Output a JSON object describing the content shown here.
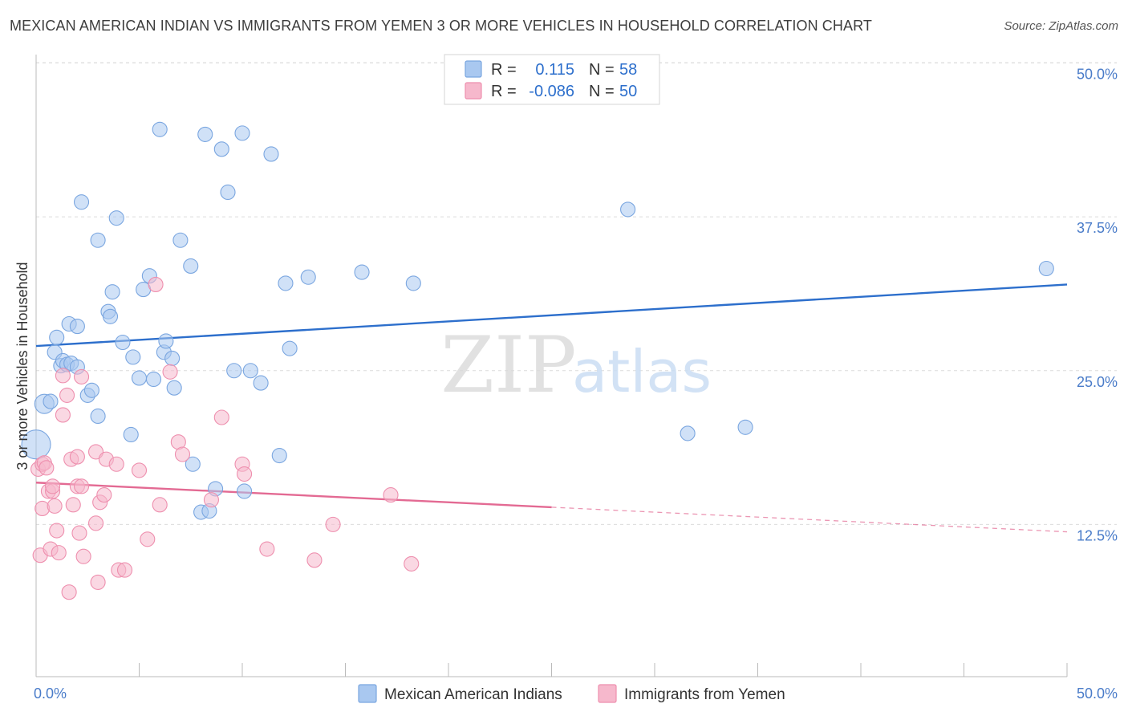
{
  "title": "MEXICAN AMERICAN INDIAN VS IMMIGRANTS FROM YEMEN 3 OR MORE VEHICLES IN HOUSEHOLD CORRELATION CHART",
  "source": "Source: ZipAtlas.com",
  "watermark": {
    "zip": "ZIP",
    "atlas": "atlas"
  },
  "legend": {
    "r_label": "R =",
    "n_label": "N =",
    "rows": [
      {
        "r": "0.115",
        "n": "58",
        "color": "#a9c8f0"
      },
      {
        "r": "-0.086",
        "n": "50",
        "color": "#f6b8cc"
      }
    ]
  },
  "bottom_legend": [
    {
      "label": "Mexican American Indians",
      "color": "#a9c8f0"
    },
    {
      "label": "Immigrants from Yemen",
      "color": "#f6b8cc"
    }
  ],
  "chart_data": {
    "type": "scatter",
    "title": "MEXICAN AMERICAN INDIAN VS IMMIGRANTS FROM YEMEN 3 OR MORE VEHICLES IN HOUSEHOLD CORRELATION CHART",
    "xlabel": "",
    "ylabel": "3 or more Vehicles in Household",
    "xlim": [
      0,
      50
    ],
    "ylim": [
      0,
      52
    ],
    "x_tick_labels": [
      "0.0%",
      "50.0%"
    ],
    "y_ticks": [
      12.5,
      25.0,
      37.5,
      50.0
    ],
    "y_tick_labels": [
      "12.5%",
      "25.0%",
      "37.5%",
      "50.0%"
    ],
    "grid": true,
    "series": [
      {
        "name": "Mexican American Indians",
        "color": "#a9c8f0",
        "stroke": "#7aa6e0",
        "trend": {
          "x0": 0,
          "y0": 27.0,
          "x1": 50,
          "y1": 32.0,
          "color": "#2d6fcc",
          "dashed_from": null
        },
        "points": [
          [
            0.0,
            19.0,
            18
          ],
          [
            0.4,
            22.3,
            12
          ],
          [
            0.7,
            22.5,
            9
          ],
          [
            0.9,
            26.5,
            9
          ],
          [
            1.0,
            27.7,
            9
          ],
          [
            1.2,
            25.4,
            9
          ],
          [
            1.3,
            25.8,
            9
          ],
          [
            1.5,
            25.5,
            9
          ],
          [
            1.6,
            28.8,
            9
          ],
          [
            1.7,
            25.6,
            9
          ],
          [
            2.0,
            25.3,
            9
          ],
          [
            2.0,
            28.6,
            9
          ],
          [
            2.2,
            38.7,
            9
          ],
          [
            2.5,
            23.0,
            9
          ],
          [
            2.7,
            23.4,
            9
          ],
          [
            3.0,
            21.3,
            9
          ],
          [
            3.0,
            35.6,
            9
          ],
          [
            3.5,
            29.8,
            9
          ],
          [
            3.6,
            29.4,
            9
          ],
          [
            3.7,
            31.4,
            9
          ],
          [
            3.9,
            37.4,
            9
          ],
          [
            4.2,
            27.3,
            9
          ],
          [
            4.6,
            19.8,
            9
          ],
          [
            4.7,
            26.1,
            9
          ],
          [
            5.0,
            24.4,
            9
          ],
          [
            5.2,
            31.6,
            9
          ],
          [
            5.5,
            32.7,
            9
          ],
          [
            5.7,
            24.3,
            9
          ],
          [
            6.0,
            44.6,
            9
          ],
          [
            6.2,
            26.5,
            9
          ],
          [
            6.3,
            27.4,
            9
          ],
          [
            6.6,
            26.0,
            9
          ],
          [
            6.7,
            23.6,
            9
          ],
          [
            7.0,
            35.6,
            9
          ],
          [
            7.5,
            33.5,
            9
          ],
          [
            7.6,
            17.4,
            9
          ],
          [
            8.0,
            13.5,
            9
          ],
          [
            8.2,
            44.2,
            9
          ],
          [
            8.4,
            13.6,
            9
          ],
          [
            8.7,
            15.4,
            9
          ],
          [
            9.0,
            43.0,
            9
          ],
          [
            9.3,
            39.5,
            9
          ],
          [
            9.6,
            25.0,
            9
          ],
          [
            10.0,
            44.3,
            9
          ],
          [
            10.1,
            15.2,
            9
          ],
          [
            10.4,
            25.0,
            9
          ],
          [
            10.9,
            24.0,
            9
          ],
          [
            11.4,
            42.6,
            9
          ],
          [
            11.8,
            18.1,
            9
          ],
          [
            12.1,
            32.1,
            9
          ],
          [
            12.3,
            26.8,
            9
          ],
          [
            13.2,
            32.6,
            9
          ],
          [
            15.8,
            33.0,
            9
          ],
          [
            18.3,
            32.1,
            9
          ],
          [
            28.7,
            38.1,
            9
          ],
          [
            31.6,
            19.9,
            9
          ],
          [
            34.4,
            20.4,
            9
          ],
          [
            49.0,
            33.3,
            9
          ]
        ]
      },
      {
        "name": "Immigrants from Yemen",
        "color": "#f6b8cc",
        "stroke": "#ee8fae",
        "trend": {
          "x0": 0,
          "y0": 15.9,
          "x1": 50,
          "y1": 11.9,
          "color": "#e36a93",
          "dashed_from": 25.0
        },
        "points": [
          [
            0.1,
            17.0,
            9
          ],
          [
            0.2,
            10.0,
            9
          ],
          [
            0.3,
            13.8,
            9
          ],
          [
            0.3,
            17.4,
            9
          ],
          [
            0.4,
            17.5,
            9
          ],
          [
            0.5,
            17.1,
            9
          ],
          [
            0.6,
            15.2,
            9
          ],
          [
            0.7,
            10.5,
            9
          ],
          [
            0.8,
            15.2,
            9
          ],
          [
            0.8,
            15.6,
            9
          ],
          [
            0.9,
            14.0,
            9
          ],
          [
            1.0,
            12.0,
            9
          ],
          [
            1.1,
            10.2,
            9
          ],
          [
            1.3,
            21.4,
            9
          ],
          [
            1.3,
            24.6,
            9
          ],
          [
            1.5,
            23.0,
            9
          ],
          [
            1.6,
            7.0,
            9
          ],
          [
            1.7,
            17.8,
            9
          ],
          [
            1.8,
            14.1,
            9
          ],
          [
            2.0,
            15.6,
            9
          ],
          [
            2.0,
            18.0,
            9
          ],
          [
            2.1,
            11.8,
            9
          ],
          [
            2.2,
            15.6,
            9
          ],
          [
            2.2,
            24.5,
            9
          ],
          [
            2.3,
            9.9,
            9
          ],
          [
            2.9,
            12.6,
            9
          ],
          [
            2.9,
            18.4,
            9
          ],
          [
            3.0,
            7.8,
            9
          ],
          [
            3.1,
            14.3,
            9
          ],
          [
            3.3,
            14.9,
            9
          ],
          [
            3.4,
            17.8,
            9
          ],
          [
            3.9,
            17.4,
            9
          ],
          [
            4.0,
            8.8,
            9
          ],
          [
            4.3,
            8.8,
            9
          ],
          [
            5.0,
            16.9,
            9
          ],
          [
            5.4,
            11.3,
            9
          ],
          [
            5.8,
            32.0,
            9
          ],
          [
            6.0,
            14.1,
            9
          ],
          [
            6.5,
            24.9,
            9
          ],
          [
            6.9,
            19.2,
            9
          ],
          [
            7.1,
            18.2,
            9
          ],
          [
            8.5,
            14.5,
            9
          ],
          [
            9.0,
            21.2,
            9
          ],
          [
            10.0,
            17.4,
            9
          ],
          [
            10.1,
            16.6,
            9
          ],
          [
            11.2,
            10.5,
            9
          ],
          [
            13.5,
            9.6,
            9
          ],
          [
            14.4,
            12.5,
            9
          ],
          [
            17.2,
            14.9,
            9
          ],
          [
            18.2,
            9.3,
            9
          ]
        ]
      }
    ]
  }
}
